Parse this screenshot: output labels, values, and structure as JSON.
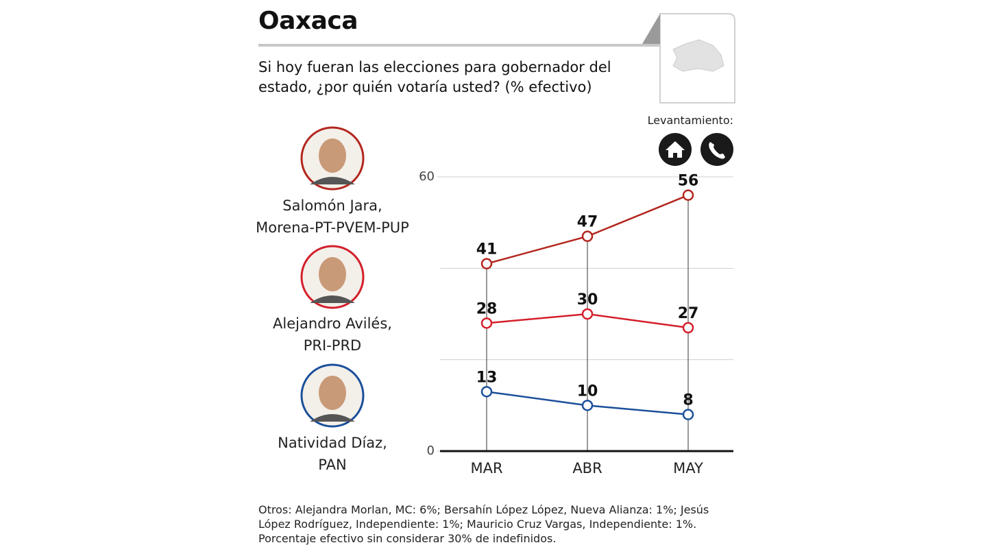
{
  "chart_data": {
    "type": "line",
    "title": "Oaxaca",
    "subtitle": "Si hoy fueran las elecciones para gobernador del estado, ¿por quién votaría usted? (% efectivo)",
    "method_label": "Levantamiento:",
    "categories": [
      "MAR",
      "ABR",
      "MAY"
    ],
    "series": [
      {
        "name": "Salomón Jara,\nMorena-PT-PVEM-PUP",
        "color": "#b3261e",
        "values": [
          41,
          47,
          56
        ]
      },
      {
        "name": "Alejandro Avilés,\nPRI-PRD",
        "color": "#d41f2b",
        "values": [
          28,
          30,
          27
        ]
      },
      {
        "name": "Natividad Díaz,\nPAN",
        "color": "#1b4f9a",
        "values": [
          13,
          10,
          8
        ]
      }
    ],
    "ylim": [
      0,
      60
    ],
    "yticks": [
      0,
      60
    ],
    "ygrid": [
      20,
      40,
      60
    ],
    "notes": [
      "Otros: Alejandra Morlan, MC: 6%; Bersahín López López, Nueva Alianza: 1%; Jesús López Rodríguez, Independiente: 1%; Mauricio Cruz Vargas, Independiente: 1%.",
      "Porcentaje efectivo sin considerar 30% de indefinidos."
    ]
  }
}
